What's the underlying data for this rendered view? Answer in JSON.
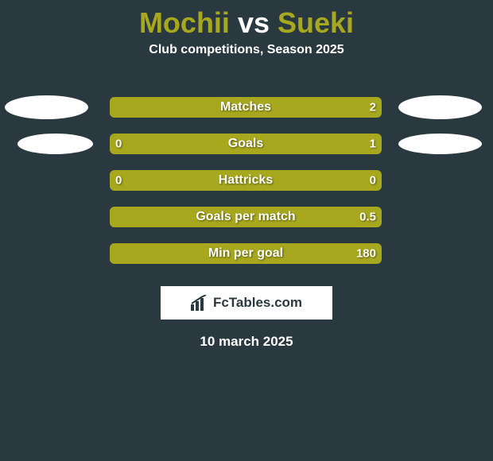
{
  "colors": {
    "background": "#2a3940",
    "player1": "#a8a81e",
    "player2": "#a8a81e",
    "ellipse": "#ffffff",
    "text": "#ffffff"
  },
  "title": {
    "player1": "Mochii",
    "vs": "vs",
    "player2": "Sueki"
  },
  "subtitle": "Club competitions, Season 2025",
  "rows": [
    {
      "label": "Matches",
      "left_value": "",
      "right_value": "2",
      "left_pct": 0,
      "right_pct": 100,
      "left_color": "#a8a81e",
      "right_color": "#a8a81e",
      "show_left_ellipse": true,
      "show_right_ellipse": true,
      "ellipse_variant": 1
    },
    {
      "label": "Goals",
      "left_value": "0",
      "right_value": "1",
      "left_pct": 19,
      "right_pct": 81,
      "left_color": "#a8a81e",
      "right_color": "#a8a81e",
      "show_left_ellipse": true,
      "show_right_ellipse": true,
      "ellipse_variant": 2
    },
    {
      "label": "Hattricks",
      "left_value": "0",
      "right_value": "0",
      "left_pct": 50,
      "right_pct": 50,
      "left_color": "#a8a81e",
      "right_color": "#a8a81e",
      "show_left_ellipse": false,
      "show_right_ellipse": false,
      "ellipse_variant": 0
    },
    {
      "label": "Goals per match",
      "left_value": "",
      "right_value": "0.5",
      "left_pct": 0,
      "right_pct": 100,
      "left_color": "#a8a81e",
      "right_color": "#a8a81e",
      "show_left_ellipse": false,
      "show_right_ellipse": false,
      "ellipse_variant": 0
    },
    {
      "label": "Min per goal",
      "left_value": "",
      "right_value": "180",
      "left_pct": 0,
      "right_pct": 100,
      "left_color": "#a8a81e",
      "right_color": "#a8a81e",
      "show_left_ellipse": false,
      "show_right_ellipse": false,
      "ellipse_variant": 0
    }
  ],
  "footer": {
    "brand": "FcTables.com",
    "date": "10 march 2025"
  }
}
